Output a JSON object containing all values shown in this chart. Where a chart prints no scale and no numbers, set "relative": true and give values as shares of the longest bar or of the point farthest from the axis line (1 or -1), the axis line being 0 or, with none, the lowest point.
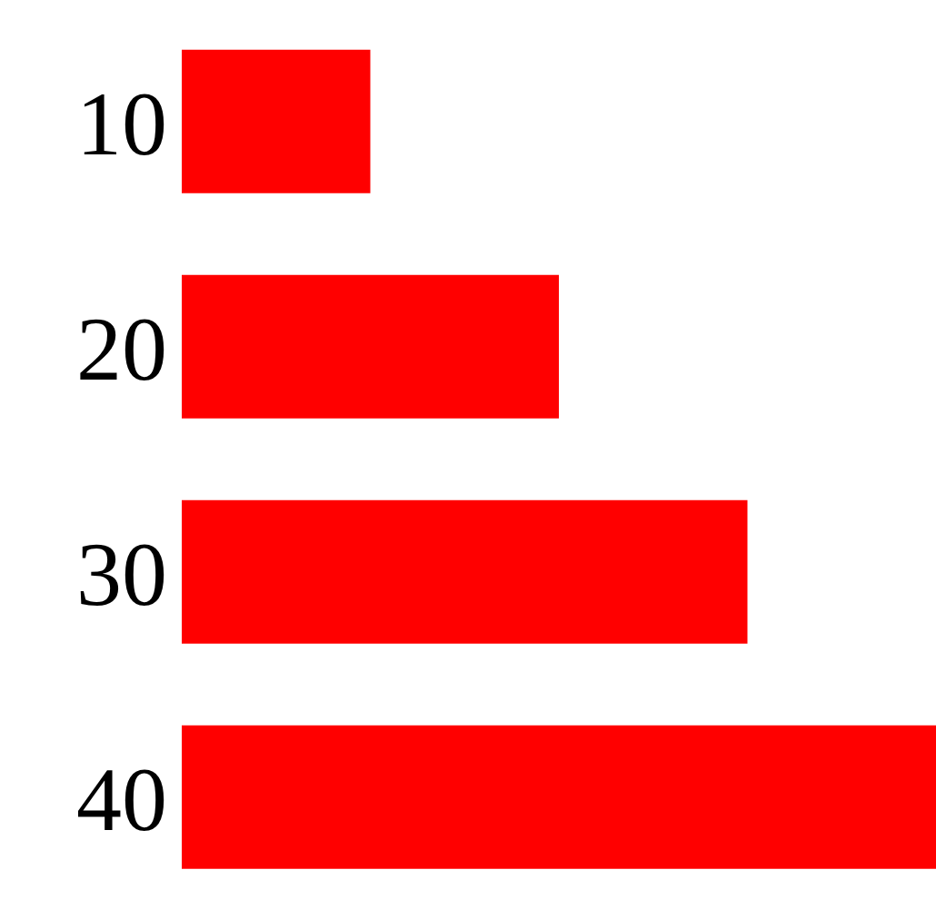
{
  "chart_data": {
    "type": "bar",
    "orientation": "horizontal",
    "relative": true,
    "categories": [
      "10",
      "20",
      "30",
      "40"
    ],
    "values": [
      0.25,
      0.5,
      0.75,
      1
    ],
    "color": "#ff0000",
    "grid": false,
    "legend": false
  }
}
